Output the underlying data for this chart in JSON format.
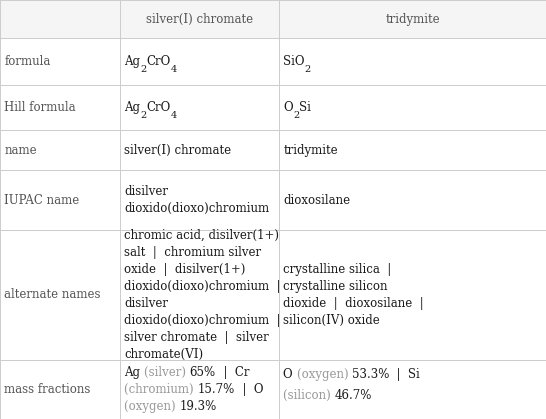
{
  "col_headers": [
    "",
    "silver(I) chromate",
    "tridymite"
  ],
  "row_labels": [
    "formula",
    "Hill formula",
    "name",
    "IUPAC name",
    "alternate names",
    "mass fractions"
  ],
  "bg_color": "#ffffff",
  "header_bg": "#f5f5f5",
  "border_color": "#cccccc",
  "text_color": "#1a1a1a",
  "gray_color": "#999999",
  "label_color": "#555555",
  "figsize": [
    5.46,
    4.19
  ],
  "dpi": 100,
  "col_bounds": [
    0,
    0.219,
    0.511,
    1.0
  ],
  "row_bounds": [
    0,
    0.091,
    0.204,
    0.311,
    0.406,
    0.549,
    0.858,
    1.0
  ],
  "font_size": 8.5,
  "sub_font_size": 6.5,
  "label_font_size": 8.5
}
